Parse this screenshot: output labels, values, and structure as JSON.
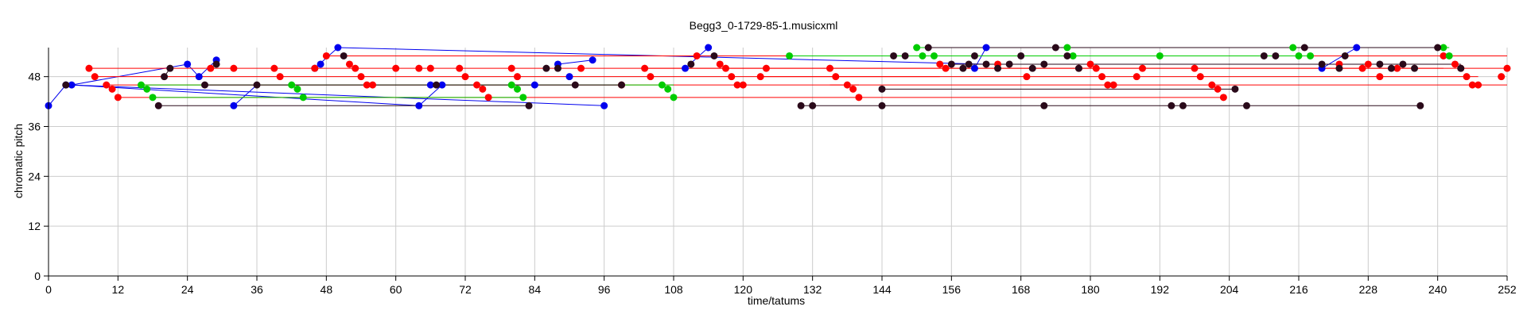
{
  "chart_data": {
    "type": "scatter",
    "title": "Begg3_0-1729-85-1.musicxml",
    "xlabel": "time/tatums",
    "ylabel": "chromatic pitch",
    "xlim": [
      0,
      252
    ],
    "ylim": [
      0,
      55
    ],
    "xticks": [
      0,
      12,
      24,
      36,
      48,
      60,
      72,
      84,
      96,
      108,
      120,
      132,
      144,
      156,
      168,
      180,
      192,
      204,
      216,
      228,
      240,
      252
    ],
    "yticks": [
      0,
      12,
      24,
      36,
      48
    ],
    "grid": true,
    "colors": {
      "blue": "#0000ee",
      "red": "#ff0000",
      "green": "#00cc00",
      "dark": "#2a0a1a",
      "grid": "#cccccc"
    },
    "series": [
      {
        "color": "blue",
        "points": [
          [
            0,
            41
          ],
          [
            3,
            46
          ],
          [
            4,
            46
          ],
          [
            24,
            51
          ],
          [
            26,
            48
          ],
          [
            29,
            52
          ],
          [
            32,
            41
          ],
          [
            46,
            50
          ],
          [
            47,
            51
          ],
          [
            50,
            55
          ],
          [
            64,
            41
          ],
          [
            66,
            46
          ],
          [
            68,
            46
          ],
          [
            84,
            46
          ],
          [
            88,
            51
          ],
          [
            90,
            48
          ],
          [
            94,
            52
          ],
          [
            96,
            41
          ],
          [
            110,
            50
          ],
          [
            114,
            55
          ],
          [
            160,
            50
          ],
          [
            162,
            55
          ],
          [
            220,
            50
          ],
          [
            226,
            55
          ]
        ],
        "lines": [
          [
            [
              0,
              41
            ],
            [
              3,
              46
            ]
          ],
          [
            [
              3,
              46
            ],
            [
              4,
              46
            ]
          ],
          [
            [
              4,
              46
            ],
            [
              24,
              51
            ]
          ],
          [
            [
              24,
              51
            ],
            [
              26,
              48
            ]
          ],
          [
            [
              26,
              48
            ],
            [
              29,
              52
            ]
          ],
          [
            [
              4,
              46
            ],
            [
              64,
              41
            ]
          ],
          [
            [
              32,
              41
            ],
            [
              36,
              46
            ]
          ],
          [
            [
              46,
              50
            ],
            [
              50,
              55
            ]
          ],
          [
            [
              50,
              55
            ],
            [
              162,
              51
            ]
          ],
          [
            [
              64,
              41
            ],
            [
              68,
              46
            ]
          ],
          [
            [
              88,
              51
            ],
            [
              94,
              52
            ]
          ],
          [
            [
              96,
              41
            ],
            [
              4,
              46
            ]
          ],
          [
            [
              110,
              50
            ],
            [
              114,
              55
            ]
          ],
          [
            [
              160,
              50
            ],
            [
              162,
              55
            ]
          ],
          [
            [
              220,
              50
            ],
            [
              226,
              55
            ]
          ]
        ]
      },
      {
        "color": "red",
        "points": [
          [
            7,
            50
          ],
          [
            8,
            48
          ],
          [
            10,
            46
          ],
          [
            11,
            45
          ],
          [
            12,
            43
          ],
          [
            28,
            50
          ],
          [
            32,
            50
          ],
          [
            39,
            50
          ],
          [
            40,
            48
          ],
          [
            46,
            50
          ],
          [
            48,
            53
          ],
          [
            52,
            51
          ],
          [
            53,
            50
          ],
          [
            54,
            48
          ],
          [
            55,
            46
          ],
          [
            56,
            46
          ],
          [
            60,
            50
          ],
          [
            64,
            50
          ],
          [
            66,
            50
          ],
          [
            71,
            50
          ],
          [
            72,
            48
          ],
          [
            74,
            46
          ],
          [
            75,
            45
          ],
          [
            76,
            43
          ],
          [
            80,
            50
          ],
          [
            81,
            48
          ],
          [
            92,
            50
          ],
          [
            99,
            46
          ],
          [
            103,
            50
          ],
          [
            104,
            48
          ],
          [
            112,
            53
          ],
          [
            116,
            51
          ],
          [
            117,
            50
          ],
          [
            118,
            48
          ],
          [
            119,
            46
          ],
          [
            120,
            46
          ],
          [
            123,
            48
          ],
          [
            124,
            50
          ],
          [
            135,
            50
          ],
          [
            136,
            48
          ],
          [
            138,
            46
          ],
          [
            139,
            45
          ],
          [
            140,
            43
          ],
          [
            154,
            51
          ],
          [
            155,
            50
          ],
          [
            164,
            51
          ],
          [
            169,
            48
          ],
          [
            178,
            50
          ],
          [
            180,
            51
          ],
          [
            181,
            50
          ],
          [
            182,
            48
          ],
          [
            183,
            46
          ],
          [
            184,
            46
          ],
          [
            188,
            48
          ],
          [
            189,
            50
          ],
          [
            198,
            50
          ],
          [
            199,
            48
          ],
          [
            201,
            46
          ],
          [
            202,
            45
          ],
          [
            203,
            43
          ],
          [
            223,
            51
          ],
          [
            227,
            50
          ],
          [
            228,
            51
          ],
          [
            230,
            48
          ],
          [
            233,
            50
          ],
          [
            241,
            53
          ],
          [
            243,
            51
          ],
          [
            244,
            50
          ],
          [
            245,
            48
          ],
          [
            246,
            46
          ],
          [
            247,
            46
          ],
          [
            251,
            48
          ],
          [
            252,
            50
          ]
        ],
        "lines": [
          [
            [
              7,
              50
            ],
            [
              252,
              50
            ]
          ],
          [
            [
              8,
              48
            ],
            [
              154,
              48
            ]
          ],
          [
            [
              10,
              46
            ],
            [
              140,
              46
            ]
          ],
          [
            [
              12,
              43
            ],
            [
              140,
              43
            ]
          ],
          [
            [
              48,
              53
            ],
            [
              252,
              53
            ]
          ],
          [
            [
              103,
              50
            ],
            [
              241,
              50
            ]
          ],
          [
            [
              123,
              48
            ],
            [
              247,
              48
            ]
          ],
          [
            [
              135,
              46
            ],
            [
              252,
              46
            ]
          ],
          [
            [
              140,
              43
            ],
            [
              203,
              43
            ]
          ]
        ]
      },
      {
        "color": "green",
        "points": [
          [
            16,
            46
          ],
          [
            17,
            45
          ],
          [
            18,
            43
          ],
          [
            42,
            46
          ],
          [
            43,
            45
          ],
          [
            44,
            43
          ],
          [
            80,
            46
          ],
          [
            81,
            45
          ],
          [
            82,
            43
          ],
          [
            106,
            46
          ],
          [
            107,
            45
          ],
          [
            108,
            43
          ],
          [
            128,
            53
          ],
          [
            150,
            55
          ],
          [
            151,
            53
          ],
          [
            153,
            53
          ],
          [
            176,
            55
          ],
          [
            177,
            53
          ],
          [
            192,
            53
          ],
          [
            215,
            55
          ],
          [
            216,
            53
          ],
          [
            218,
            53
          ],
          [
            241,
            55
          ],
          [
            242,
            53
          ]
        ],
        "lines": [
          [
            [
              16,
              46
            ],
            [
              108,
              46
            ]
          ],
          [
            [
              150,
              55
            ],
            [
              242,
              55
            ]
          ],
          [
            [
              128,
              53
            ],
            [
              218,
              53
            ]
          ],
          [
            [
              18,
              43
            ],
            [
              82,
              43
            ]
          ]
        ]
      },
      {
        "color": "dark",
        "points": [
          [
            3,
            46
          ],
          [
            19,
            41
          ],
          [
            20,
            48
          ],
          [
            21,
            50
          ],
          [
            27,
            46
          ],
          [
            29,
            51
          ],
          [
            36,
            46
          ],
          [
            51,
            53
          ],
          [
            67,
            46
          ],
          [
            83,
            41
          ],
          [
            86,
            50
          ],
          [
            88,
            50
          ],
          [
            91,
            46
          ],
          [
            99,
            46
          ],
          [
            111,
            51
          ],
          [
            115,
            53
          ],
          [
            130,
            41
          ],
          [
            132,
            41
          ],
          [
            144,
            41
          ],
          [
            144,
            45
          ],
          [
            146,
            53
          ],
          [
            148,
            53
          ],
          [
            152,
            55
          ],
          [
            156,
            51
          ],
          [
            158,
            50
          ],
          [
            159,
            51
          ],
          [
            160,
            53
          ],
          [
            162,
            51
          ],
          [
            164,
            50
          ],
          [
            166,
            51
          ],
          [
            168,
            53
          ],
          [
            170,
            50
          ],
          [
            172,
            51
          ],
          [
            172,
            41
          ],
          [
            174,
            55
          ],
          [
            176,
            53
          ],
          [
            178,
            50
          ],
          [
            194,
            41
          ],
          [
            196,
            41
          ],
          [
            205,
            45
          ],
          [
            207,
            41
          ],
          [
            210,
            53
          ],
          [
            212,
            53
          ],
          [
            217,
            55
          ],
          [
            220,
            51
          ],
          [
            223,
            50
          ],
          [
            224,
            53
          ],
          [
            230,
            51
          ],
          [
            232,
            50
          ],
          [
            234,
            51
          ],
          [
            236,
            50
          ],
          [
            237,
            41
          ],
          [
            240,
            55
          ],
          [
            244,
            50
          ]
        ],
        "lines": [
          [
            [
              19,
              41
            ],
            [
              83,
              41
            ]
          ],
          [
            [
              20,
              48
            ],
            [
              21,
              50
            ]
          ],
          [
            [
              27,
              46
            ],
            [
              99,
              46
            ]
          ],
          [
            [
              130,
              41
            ],
            [
              237,
              41
            ]
          ],
          [
            [
              152,
              55
            ],
            [
              240,
              55
            ]
          ],
          [
            [
              156,
              51
            ],
            [
              244,
              51
            ]
          ],
          [
            [
              144,
              45
            ],
            [
              205,
              45
            ]
          ]
        ]
      }
    ]
  }
}
